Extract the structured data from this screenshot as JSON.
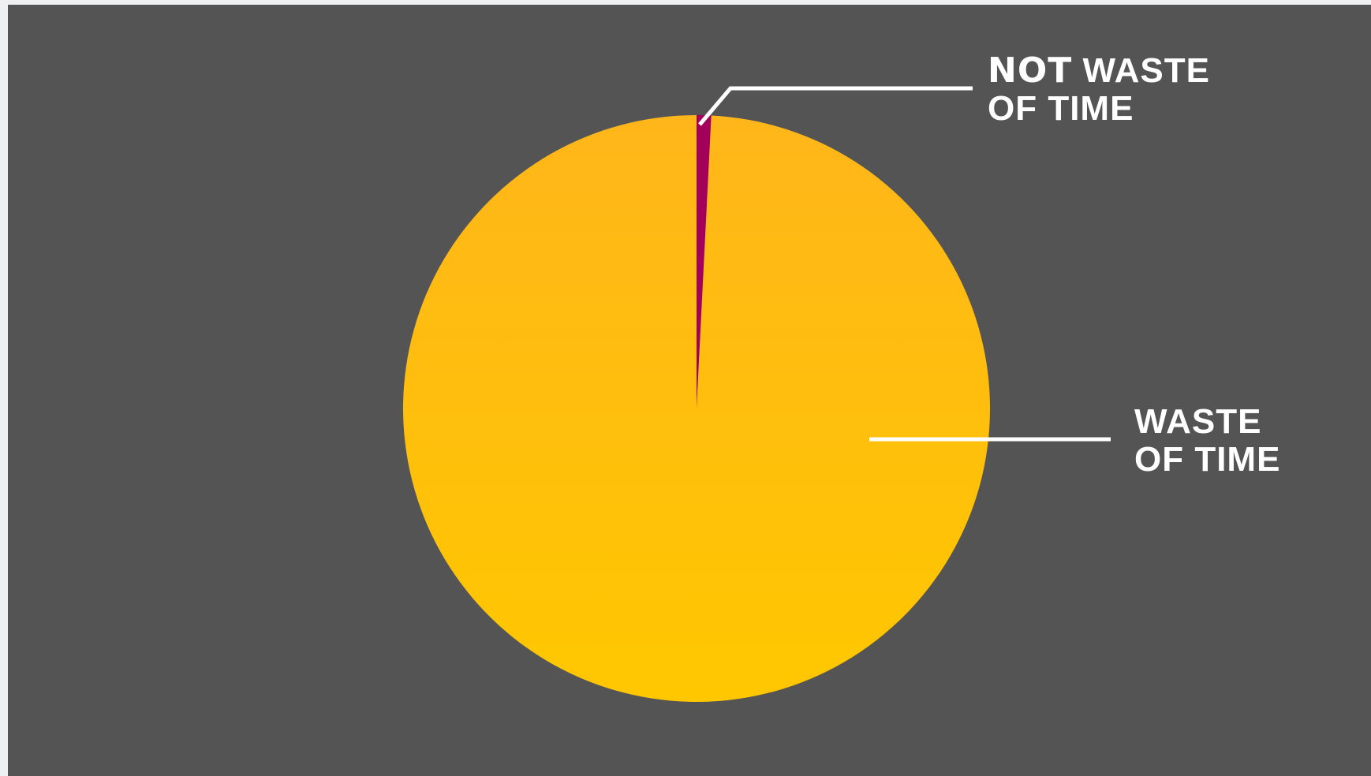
{
  "chart_data": {
    "type": "pie",
    "start_angle_deg": 0,
    "direction": "clockwise",
    "slices": [
      {
        "label_emphasis": "NOT",
        "label_line1": " WASTE",
        "label_line2": "OF TIME",
        "value": 0.8,
        "color": "#a3005c"
      },
      {
        "label_emphasis": "",
        "label_line1": "WASTE",
        "label_line2": "OF TIME",
        "value": 99.2,
        "color": "#ffc504"
      }
    ],
    "legend": "none",
    "grid": false
  },
  "colors": {
    "background": "#545454",
    "pie_gradient_top": "#ffb61a",
    "pie_gradient_bottom": "#ffc700",
    "leader_line": "#ffffff",
    "label": "#ffffff"
  }
}
